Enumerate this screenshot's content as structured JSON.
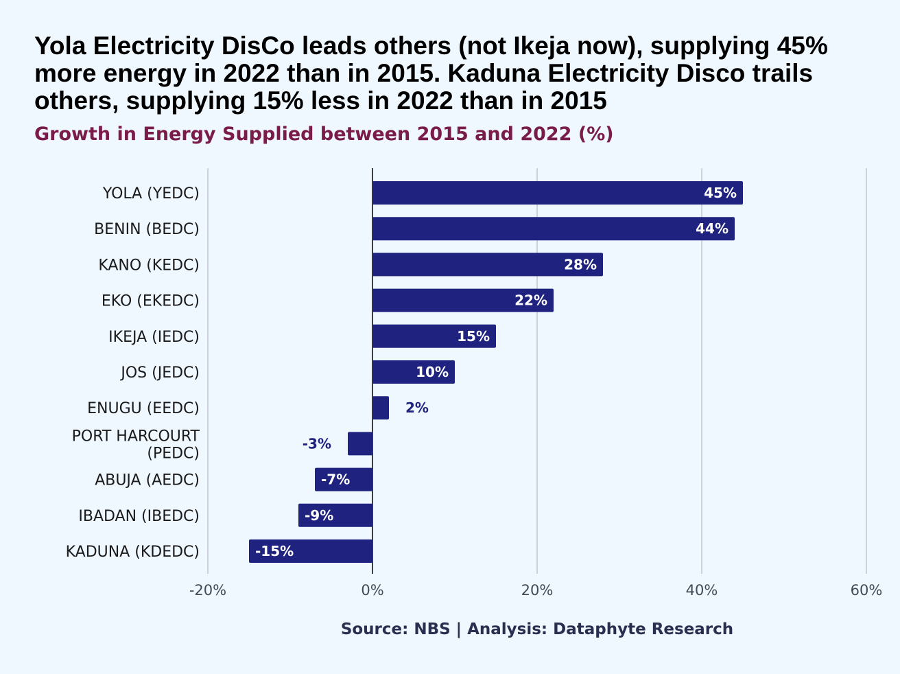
{
  "header": {
    "title": "Yola Electricity DisCo leads others (not Ikeja now), supplying 45% more energy in 2022 than in 2015. Kaduna Electricity Disco trails others, supplying 15% less in 2022 than in 2015",
    "subtitle": "Growth in Energy Supplied between 2015 and 2022 (%)"
  },
  "footer": {
    "source": "Source: NBS | Analysis: Dataphyte Research"
  },
  "colors": {
    "background": "#eff7ff",
    "bar": "#1f237f",
    "subtitle": "#7a1c4a",
    "inside_label": "#ffffff",
    "outside_label": "#1f237f"
  },
  "chart_data": {
    "type": "bar",
    "orientation": "horizontal",
    "categories": [
      "YOLA (YEDC)",
      "BENIN (BEDC)",
      "KANO (KEDC)",
      "EKO (EKEDC)",
      "IKEJA (IEDC)",
      "JOS (JEDC)",
      "ENUGU (EEDC)",
      "PORT HARCOURT (PEDC)",
      "ABUJA (AEDC)",
      "IBADAN (IBEDC)",
      "KADUNA (KDEDC)"
    ],
    "values": [
      45,
      44,
      28,
      22,
      15,
      10,
      2,
      -3,
      -7,
      -9,
      -15
    ],
    "data_labels": [
      "45%",
      "44%",
      "28%",
      "22%",
      "15%",
      "10%",
      "2%",
      "-3%",
      "-7%",
      "-9%",
      "-15%"
    ],
    "xlim": [
      -20,
      60
    ],
    "xticks": [
      -20,
      0,
      20,
      40,
      60
    ],
    "xtick_labels": [
      "-20%",
      "0%",
      "20%",
      "40%",
      "60%"
    ],
    "xlabel": "",
    "ylabel": "",
    "grid": true,
    "legend": "none"
  }
}
